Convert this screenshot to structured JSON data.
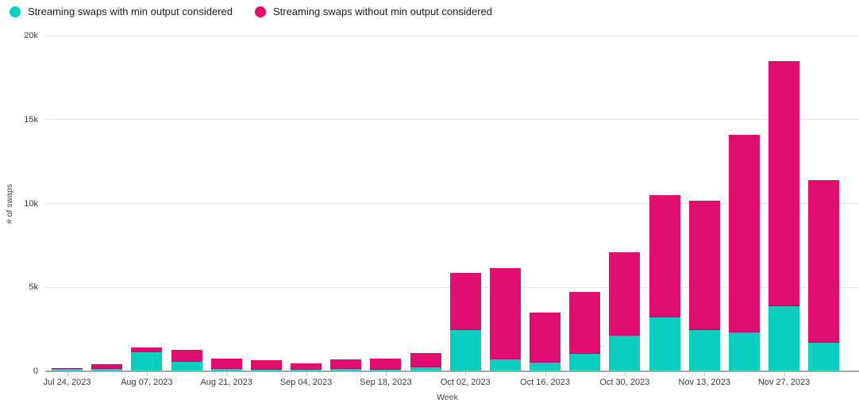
{
  "legend": {
    "items": [
      {
        "label": "Streaming swaps with min output considered",
        "color": "#0bcec1"
      },
      {
        "label": "Streaming swaps without min output considered",
        "color": "#e00e6e"
      }
    ]
  },
  "axes": {
    "y_title": "# of swaps",
    "x_title": "Week"
  },
  "chart_data": {
    "type": "bar",
    "stacked": true,
    "title": "",
    "xlabel": "Week",
    "ylabel": "# of swaps",
    "ylim": [
      0,
      20000
    ],
    "grid": "horizontal",
    "legend_position": "top-left",
    "y_tick_values": [
      0,
      5000,
      10000,
      15000,
      20000
    ],
    "y_tick_labels": [
      "0",
      "5k",
      "10k",
      "15k",
      "20k"
    ],
    "categories": [
      "Jul 24, 2023",
      "Jul 31, 2023",
      "Aug 07, 2023",
      "Aug 14, 2023",
      "Aug 21, 2023",
      "Aug 28, 2023",
      "Sep 04, 2023",
      "Sep 11, 2023",
      "Sep 18, 2023",
      "Sep 25, 2023",
      "Oct 02, 2023",
      "Oct 09, 2023",
      "Oct 16, 2023",
      "Oct 23, 2023",
      "Oct 30, 2023",
      "Nov 06, 2023",
      "Nov 13, 2023",
      "Nov 20, 2023",
      "Nov 27, 2023",
      "Dec 04, 2023"
    ],
    "x_tick_every": 2,
    "visible_x_tick_labels": [
      "Jul 24, 2023",
      "Aug 07, 2023",
      "Aug 21, 2023",
      "Sep 04, 2023",
      "Sep 18, 2023",
      "Oct 02, 2023",
      "Oct 16, 2023",
      "Oct 30, 2023",
      "Nov 13, 2023",
      "Nov 27, 2023"
    ],
    "series": [
      {
        "name": "Streaming swaps with min output considered",
        "color": "#0bcec1",
        "values": [
          120,
          160,
          1150,
          590,
          150,
          100,
          80,
          120,
          100,
          250,
          2450,
          720,
          510,
          1050,
          2150,
          3200,
          2450,
          2300,
          3900,
          1700
        ]
      },
      {
        "name": "Streaming swaps without min output considered",
        "color": "#e00e6e",
        "values": [
          60,
          280,
          280,
          710,
          600,
          570,
          400,
          580,
          650,
          850,
          3400,
          5430,
          2990,
          3700,
          4950,
          7300,
          7700,
          11800,
          14600,
          9700
        ]
      }
    ]
  }
}
